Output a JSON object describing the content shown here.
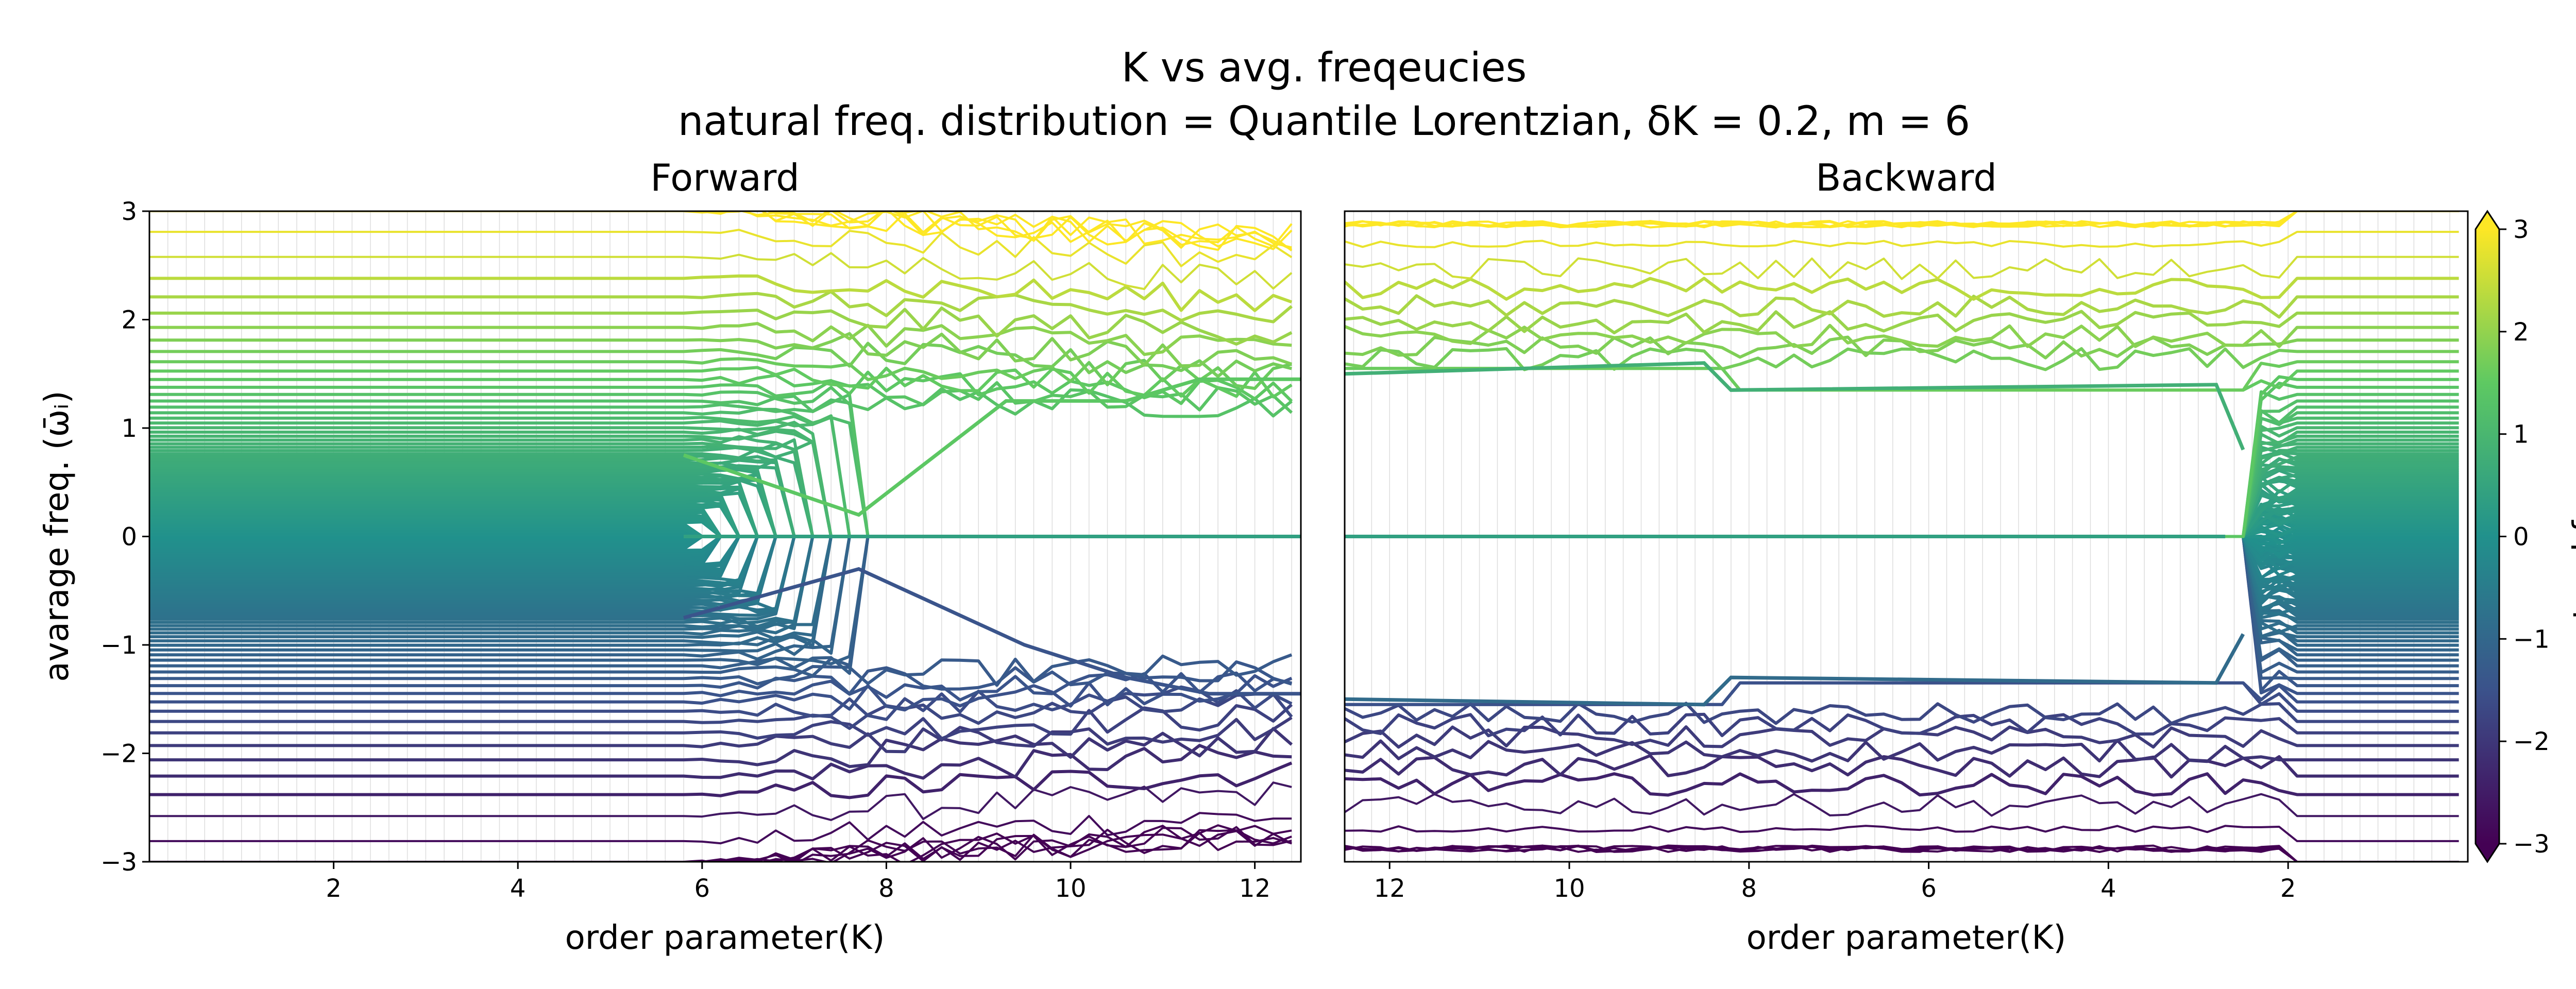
{
  "figure": {
    "title": "K vs avg. freqeucies",
    "subtitle": "natural freq. distribution = Quantile Lorentzian, δK = 0.2, m = 6",
    "colormap": [
      "#440154",
      "#3b528b",
      "#21918c",
      "#5ec962",
      "#fde725"
    ]
  },
  "chart_data": [
    {
      "type": "line",
      "title": "Forward",
      "xlabel": "order parameter(K)",
      "ylabel": "avarage freq. (ω̄ᵢ)",
      "xlim": [
        0,
        12.5
      ],
      "ylim": [
        -3,
        3
      ],
      "xticks": [
        2,
        4,
        6,
        8,
        10,
        12
      ],
      "yticks": [
        -3,
        -2,
        -1,
        0,
        1,
        2,
        3
      ],
      "x_reversed": false,
      "grid": "vertical lines at each K step",
      "k_step": 0.2,
      "oscillators": 160,
      "sync_onset_K": 5.8,
      "sync_full_lock_K": 7.7,
      "locked_level_upper": 1.25,
      "locked_level_lower": -1.4,
      "series": [
        {
          "id": "locked-zero",
          "x": [
            5.8,
            7.7,
            12.5
          ],
          "y": [
            0.0,
            0.0,
            0.0
          ]
        },
        {
          "id": "upper-group",
          "x": [
            5.8,
            7.7,
            9.3,
            10.6,
            11.4,
            12.5
          ],
          "y": [
            0.75,
            0.2,
            1.25,
            1.25,
            1.45,
            1.45
          ]
        },
        {
          "id": "lower-group",
          "x": [
            5.8,
            7.7,
            9.5,
            10.6,
            11.5,
            12.5
          ],
          "y": [
            -0.75,
            -0.3,
            -1.0,
            -1.3,
            -1.45,
            -1.45
          ]
        }
      ]
    },
    {
      "type": "line",
      "title": "Backward",
      "xlabel": "order parameter(K)",
      "ylabel": "",
      "xlim": [
        12.5,
        0
      ],
      "ylim": [
        -3,
        3
      ],
      "xticks": [
        12,
        10,
        8,
        6,
        4,
        2
      ],
      "yticks": [],
      "x_reversed": true,
      "grid": "vertical lines at each K step",
      "k_step": 0.2,
      "oscillators": 160,
      "sync_loss_K": 2.5,
      "locked_level_upper": 1.55,
      "locked_level_lower": -1.55,
      "series": [
        {
          "id": "locked-zero",
          "x": [
            12.5,
            2.7
          ],
          "y": [
            0.0,
            0.0
          ]
        },
        {
          "id": "upper-group",
          "x": [
            12.5,
            8.5,
            8.2,
            2.8,
            2.5
          ],
          "y": [
            1.5,
            1.6,
            1.35,
            1.4,
            0.8
          ]
        },
        {
          "id": "lower-group",
          "x": [
            12.5,
            8.5,
            8.2,
            2.8,
            2.5
          ],
          "y": [
            -1.5,
            -1.55,
            -1.3,
            -1.35,
            -0.9
          ]
        }
      ]
    }
  ],
  "colorbar": {
    "label": "natural freq. ωᵢ",
    "range": [
      -3,
      3
    ],
    "ticks": [
      -3,
      -2,
      -1,
      0,
      1,
      2,
      3
    ],
    "extend": "both"
  }
}
